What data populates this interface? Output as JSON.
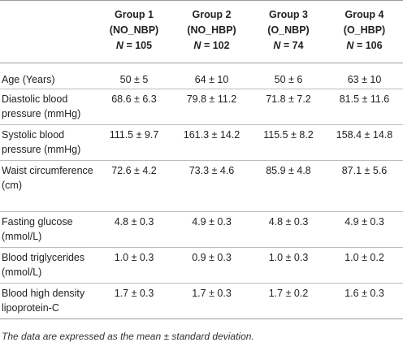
{
  "header": {
    "columns": [
      {
        "line1": "",
        "line2": "",
        "nlabel": "",
        "neq": ""
      },
      {
        "line1": "Group 1",
        "line2": "(NO_NBP)",
        "nlabel": "N",
        "neq": "= 105"
      },
      {
        "line1": "Group 2",
        "line2": "(NO_HBP)",
        "nlabel": "N",
        "neq": "= 102"
      },
      {
        "line1": "Group 3",
        "line2": "(O_NBP)",
        "nlabel": "N",
        "neq": "= 74"
      },
      {
        "line1": "Group 4",
        "line2": "(O_HBP)",
        "nlabel": "N",
        "neq": "= 106"
      }
    ]
  },
  "rows": [
    {
      "label": "Age (Years)",
      "values": [
        "50 ± 5",
        "64 ± 10",
        "50 ± 6",
        "63 ± 10"
      ]
    },
    {
      "label": "Diastolic blood pressure (mmHg)",
      "values": [
        "68.6 ± 6.3",
        "79.8 ± 11.2",
        "71.8 ± 7.2",
        "81.5 ± 11.6"
      ]
    },
    {
      "label": "Systolic blood pressure (mmHg)",
      "values": [
        "111.5 ± 9.7",
        "161.3 ± 14.2",
        "115.5 ± 8.2",
        "158.4 ± 14.8"
      ]
    },
    {
      "label": "Waist circumference (cm)",
      "values": [
        "72.6 ± 4.2",
        "73.3 ± 4.6",
        "85.9 ± 4.8",
        "87.1 ± 5.6"
      ]
    },
    {
      "label": "Fasting glucose (mmol/L)",
      "values": [
        "4.8 ± 0.3",
        "4.9 ± 0.3",
        "4.8 ± 0.3",
        "4.9 ± 0.3"
      ]
    },
    {
      "label": "Blood triglycerides (mmol/L)",
      "values": [
        "1.0 ± 0.3",
        "0.9 ± 0.3",
        "1.0 ± 0.3",
        "1.0 ± 0.2"
      ]
    },
    {
      "label": "Blood high density lipoprotein-C",
      "values": [
        "1.7 ± 0.3",
        "1.7 ± 0.3",
        "1.7 ± 0.2",
        "1.6 ± 0.3"
      ]
    }
  ],
  "footnote": "The data are expressed as the mean ± standard deviation."
}
